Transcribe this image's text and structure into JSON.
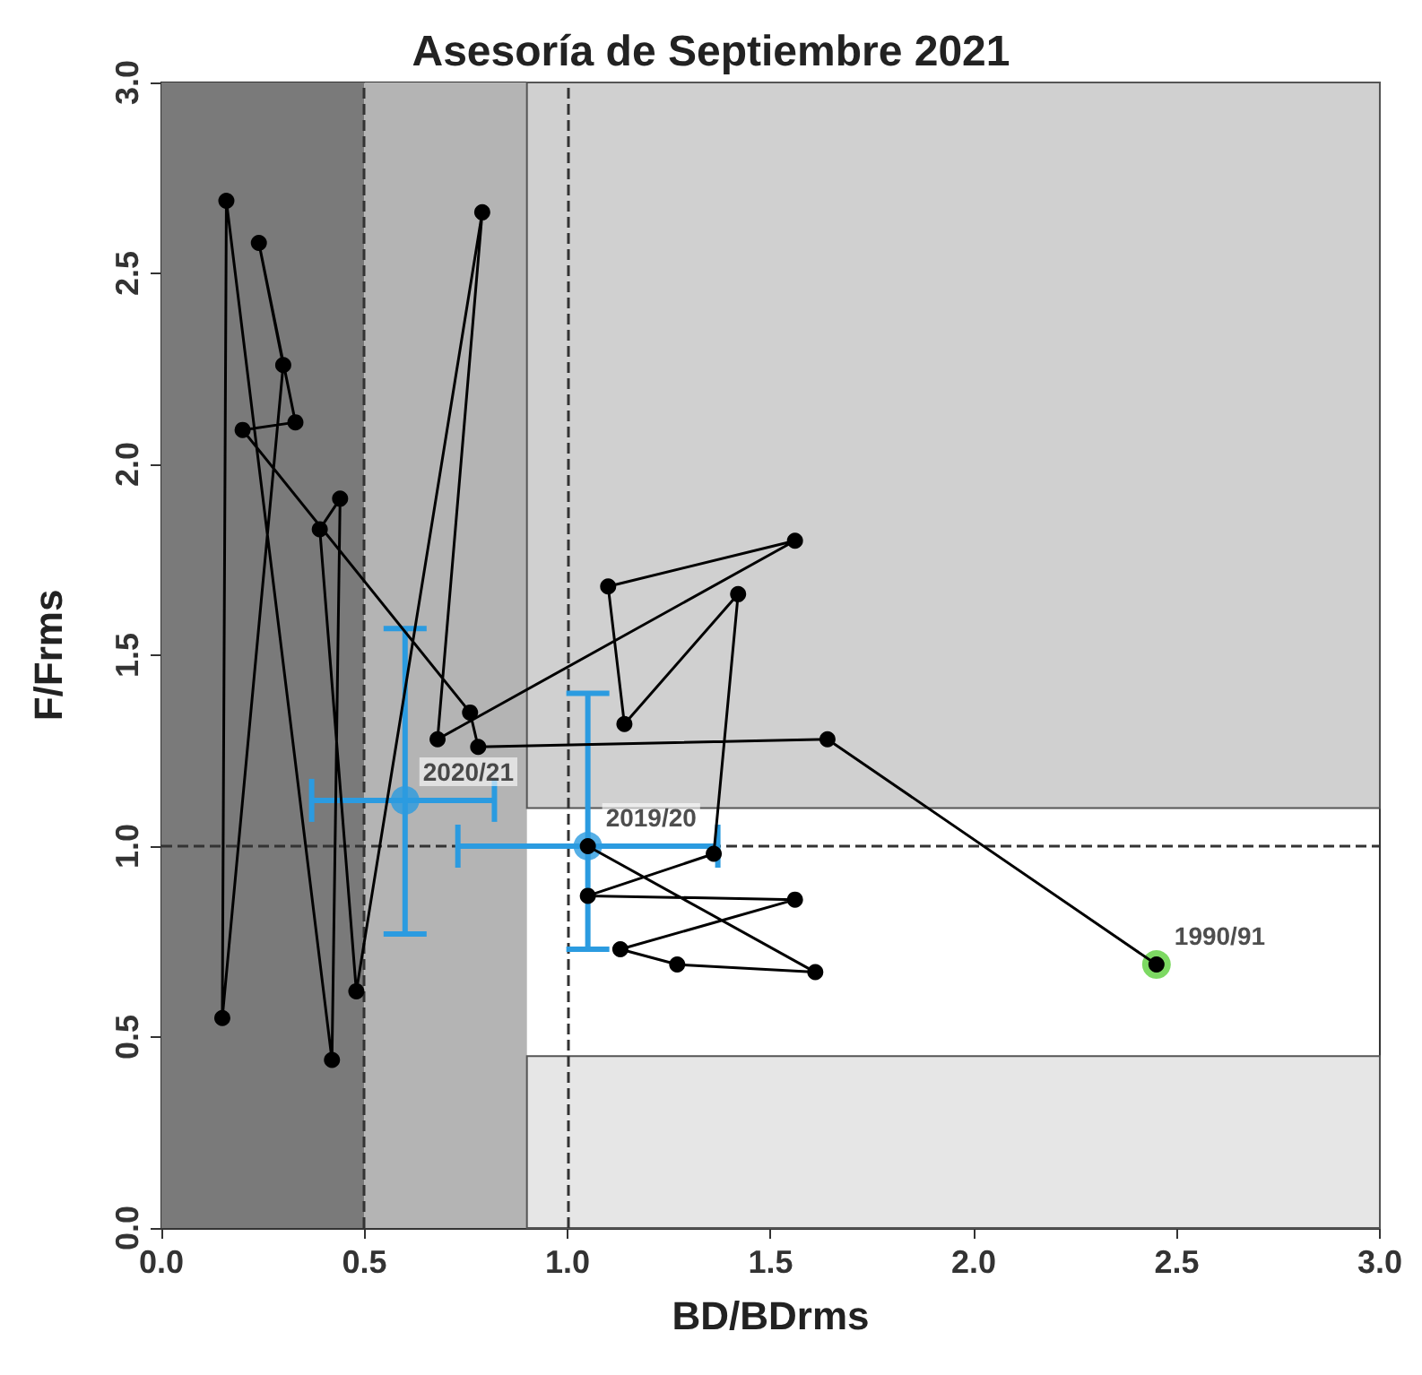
{
  "chart_data": {
    "type": "line",
    "title": "Asesoría de Septiembre 2021",
    "xlabel": "BD/BDrms",
    "ylabel": "F/Frms",
    "xlim": [
      0,
      3
    ],
    "ylim": [
      0,
      3
    ],
    "xticks": [
      {
        "value": 0,
        "label": "0.0"
      },
      {
        "value": 0.5,
        "label": "0.5"
      },
      {
        "value": 1,
        "label": "1.0"
      },
      {
        "value": 1.5,
        "label": "1.5"
      },
      {
        "value": 2,
        "label": "2.0"
      },
      {
        "value": 2.5,
        "label": "2.5"
      },
      {
        "value": 3,
        "label": "3.0"
      }
    ],
    "yticks": [
      {
        "value": 0,
        "label": "0.0"
      },
      {
        "value": 0.5,
        "label": "0.5"
      },
      {
        "value": 1,
        "label": "1.0"
      },
      {
        "value": 1.5,
        "label": "1.5"
      },
      {
        "value": 2,
        "label": "2.0"
      },
      {
        "value": 2.5,
        "label": "2.5"
      },
      {
        "value": 3,
        "label": "3.0"
      }
    ],
    "grid": false,
    "marker": "circle",
    "series": [
      {
        "color": "#000000",
        "x": [
          2.45,
          1.64,
          0.78,
          0.76,
          0.2,
          0.33,
          0.24,
          0.3,
          0.15,
          0.16,
          0.42,
          0.44,
          0.39,
          0.48,
          0.79,
          0.68,
          1.56,
          1.1,
          1.14,
          1.42,
          1.36,
          1.05,
          1.56,
          1.13,
          1.27,
          1.61,
          1.05
        ],
        "values": [
          0.69,
          1.28,
          1.26,
          1.35,
          2.09,
          2.11,
          2.58,
          2.26,
          0.55,
          2.69,
          0.44,
          1.91,
          1.83,
          0.62,
          2.66,
          1.28,
          1.8,
          1.68,
          1.32,
          1.66,
          0.98,
          0.87,
          0.86,
          0.73,
          0.69,
          0.67,
          1.0
        ]
      },
      {
        "type": "scatter",
        "color": "#5ccf3c",
        "x": [
          2.45
        ],
        "values": [
          0.69
        ]
      },
      {
        "type": "scatter",
        "color": "#2b9be0",
        "x": [
          1.05,
          0.6
        ],
        "values": [
          1.0,
          1.12
        ],
        "errors": [
          [
            0.73,
            1.4
          ],
          [
            0.77,
            1.57
          ]
        ],
        "xerrors": [
          [
            0.73,
            1.37
          ],
          [
            0.37,
            0.82
          ]
        ]
      }
    ],
    "bands": [
      {
        "axis": "x",
        "from": 0,
        "to": 0.5,
        "color": "#7a7a7a"
      },
      {
        "axis": "x",
        "from": 0.5,
        "to": 0.9,
        "color": "#b4b4b4"
      },
      {
        "axis": "y",
        "from": 1.1,
        "to": 3,
        "color": "#d0d0d0"
      },
      {
        "axis": "y",
        "from": 0,
        "to": 0.45,
        "color": "#e6e6e6"
      }
    ],
    "ref_lines": [
      {
        "axis": "x",
        "value": 0.5,
        "line_style": "dashed",
        "color": "#333333"
      },
      {
        "axis": "x",
        "value": 1,
        "line_style": "dashed",
        "color": "#333333"
      },
      {
        "axis": "y",
        "value": 1,
        "line_style": "dashed",
        "color": "#333333"
      }
    ],
    "annotations": [
      {
        "text": "1990/91",
        "x": 2.45,
        "y": 0.69
      },
      {
        "text": "2019/20",
        "x": 1.05,
        "y": 1.0
      },
      {
        "text": "2020/21",
        "x": 0.6,
        "y": 1.12
      }
    ]
  }
}
